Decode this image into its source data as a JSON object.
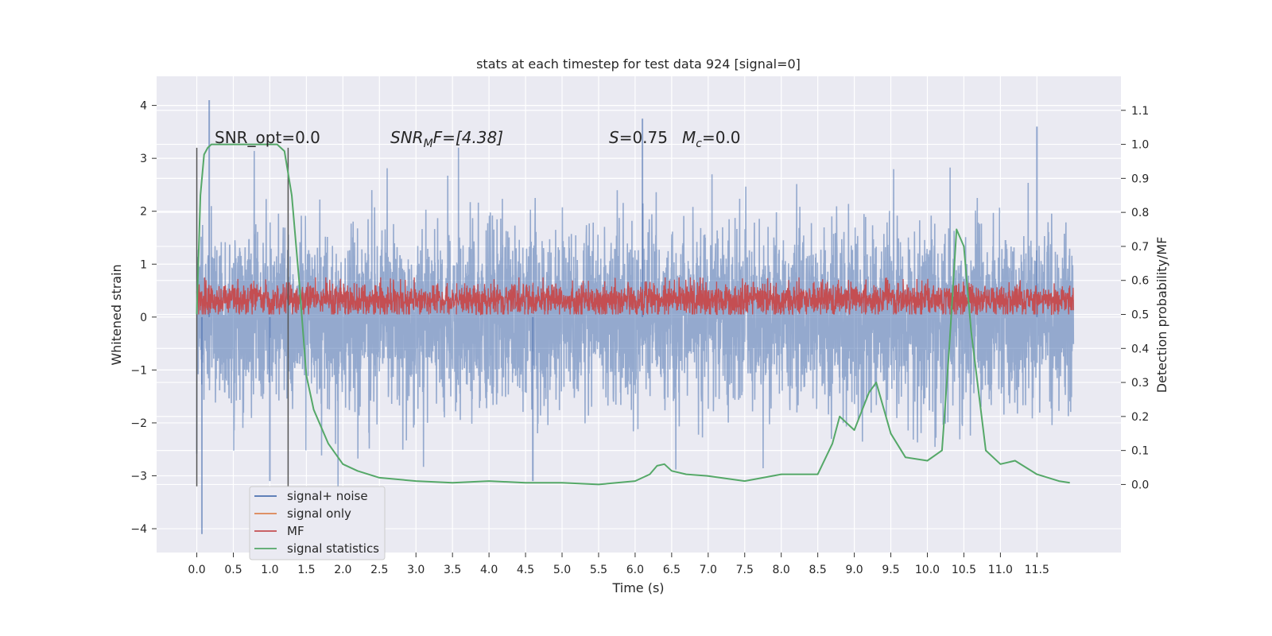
{
  "chart_data": {
    "type": "line",
    "title": "stats at each timestep for test data 924 [signal=0]",
    "xlabel": "Time (s)",
    "ylabel": "Whitened strain",
    "ylabel_right": "Detection probability/MF",
    "xlim": [
      -0.55,
      12.65
    ],
    "ylim": [
      -4.45,
      4.55
    ],
    "ylim_right": [
      -0.2,
      1.2
    ],
    "x_ticks": [
      "0.0",
      "0.5",
      "1.0",
      "1.5",
      "2.0",
      "2.5",
      "3.0",
      "3.5",
      "4.0",
      "4.5",
      "5.0",
      "5.5",
      "6.0",
      "6.5",
      "7.0",
      "7.5",
      "8.0",
      "8.5",
      "9.0",
      "9.5",
      "10.0",
      "10.5",
      "11.0",
      "11.5"
    ],
    "y_ticks": [
      "4",
      "3",
      "2",
      "1",
      "0",
      "−1",
      "−2",
      "−3",
      "−4"
    ],
    "y_right_ticks": [
      "1.1",
      "1.0",
      "0.9",
      "0.8",
      "0.7",
      "0.6",
      "0.5",
      "0.4",
      "0.3",
      "0.2",
      "0.1",
      "0.0"
    ],
    "grid": true,
    "legend_placement": "lower-left",
    "annotations": {
      "snr_opt": "SNR_opt=0.0",
      "snr_mf": "SNR",
      "snr_mf_sub": "M",
      "snr_mf_tail": "F=[4.38]",
      "s_value_label": "S",
      "s_value": "=0.75",
      "mc_label": "M",
      "mc_sub": "c",
      "mc_value": "=0.0"
    },
    "markers": [
      0.0,
      1.25
    ],
    "marker_range": [
      -3.2,
      3.2
    ],
    "series": [
      {
        "name": "signal+ noise",
        "color": "#4c72b0",
        "axis": "left",
        "description": "dense noise from t=0 to 12",
        "x_range": [
          0,
          12
        ],
        "typical_envelope": [
          -2.0,
          2.0
        ],
        "spikes": [
          [
            0.17,
            4.1
          ],
          [
            0.07,
            -4.1
          ],
          [
            6.1,
            3.75
          ],
          [
            11.5,
            3.6
          ],
          [
            1.0,
            -3.1
          ],
          [
            4.6,
            -3.1
          ]
        ]
      },
      {
        "name": "signal only",
        "color": "#dd8452",
        "axis": "left",
        "values": []
      },
      {
        "name": "MF",
        "color": "#c44e52",
        "axis": "left",
        "description": "dense band from t=0 to 12",
        "x_range": [
          0,
          12
        ],
        "band": [
          0.05,
          0.6
        ]
      },
      {
        "name": "signal statistics",
        "color": "#55a868",
        "axis": "right",
        "x": [
          0.0,
          0.05,
          0.1,
          0.15,
          0.2,
          0.3,
          0.5,
          0.8,
          1.0,
          1.1,
          1.2,
          1.3,
          1.4,
          1.5,
          1.6,
          1.8,
          2.0,
          2.2,
          2.5,
          3.0,
          3.5,
          4.0,
          4.5,
          5.0,
          5.5,
          6.0,
          6.2,
          6.3,
          6.4,
          6.5,
          6.7,
          7.0,
          7.5,
          8.0,
          8.5,
          8.7,
          8.8,
          9.0,
          9.2,
          9.3,
          9.5,
          9.7,
          10.0,
          10.2,
          10.3,
          10.4,
          10.5,
          10.6,
          10.8,
          11.0,
          11.2,
          11.5,
          11.8,
          11.95
        ],
        "y": [
          0.5,
          0.85,
          0.97,
          0.99,
          1.0,
          1.0,
          1.0,
          1.0,
          1.0,
          1.0,
          0.98,
          0.85,
          0.6,
          0.32,
          0.22,
          0.12,
          0.06,
          0.04,
          0.02,
          0.01,
          0.005,
          0.01,
          0.005,
          0.005,
          0.0,
          0.01,
          0.03,
          0.055,
          0.06,
          0.04,
          0.03,
          0.025,
          0.01,
          0.03,
          0.03,
          0.12,
          0.2,
          0.16,
          0.27,
          0.3,
          0.15,
          0.08,
          0.07,
          0.1,
          0.4,
          0.75,
          0.7,
          0.45,
          0.1,
          0.06,
          0.07,
          0.03,
          0.01,
          0.005
        ]
      }
    ]
  }
}
